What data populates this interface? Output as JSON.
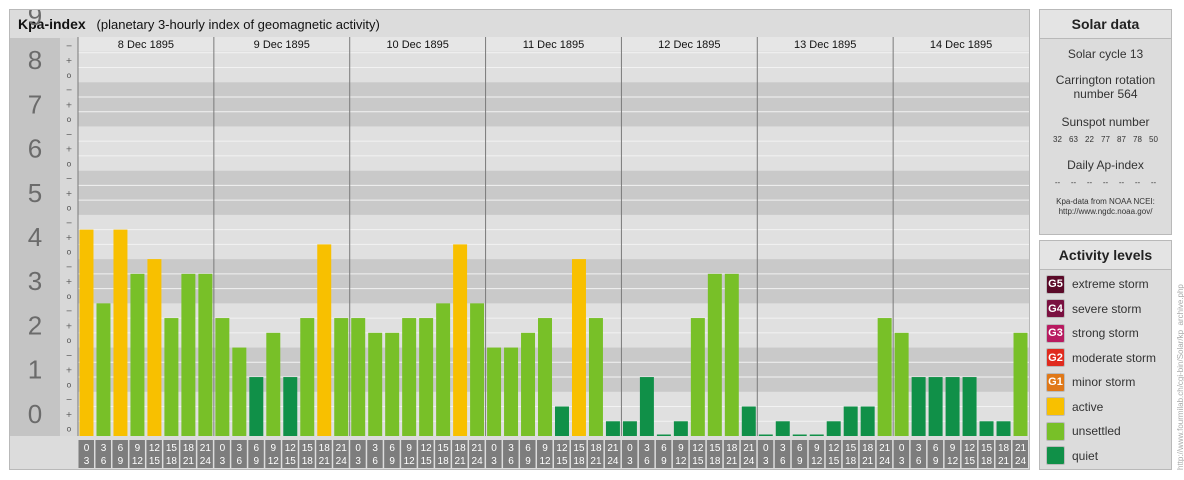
{
  "title": {
    "main": "Kpa-index",
    "sub": "(planetary 3-hourly index of geomagnetic activity)"
  },
  "chart_data": {
    "type": "bar",
    "days": [
      "8 Dec 1895",
      "9 Dec 1895",
      "10 Dec 1895",
      "11 Dec 1895",
      "12 Dec 1895",
      "13 Dec 1895",
      "14 Dec 1895"
    ],
    "interval_starts": [
      "0",
      "3",
      "6",
      "9",
      "12",
      "15",
      "18",
      "21"
    ],
    "interval_ends": [
      "3",
      "6",
      "9",
      "12",
      "15",
      "18",
      "21",
      "24"
    ],
    "ylim": [
      0,
      9
    ],
    "y_ticks": [
      "0",
      "1",
      "2",
      "3",
      "4",
      "5",
      "6",
      "7",
      "8",
      "9"
    ],
    "sub_ticks": [
      "o",
      "+",
      "−"
    ],
    "values": [
      4.667,
      3.0,
      4.667,
      3.667,
      4.0,
      2.667,
      3.667,
      3.667,
      2.667,
      2.0,
      1.333,
      2.333,
      1.333,
      2.667,
      4.333,
      2.667,
      2.667,
      2.333,
      2.333,
      2.667,
      2.667,
      3.0,
      4.333,
      3.0,
      2.0,
      2.0,
      2.333,
      2.667,
      0.667,
      4.0,
      2.667,
      0.333,
      0.333,
      1.333,
      0.0,
      0.333,
      2.667,
      3.667,
      3.667,
      0.667,
      0.0,
      0.333,
      0.0,
      0.0,
      0.333,
      0.667,
      0.667,
      2.667,
      2.333,
      1.333,
      1.333,
      1.333,
      1.333,
      0.333,
      0.333,
      2.333
    ],
    "grid": true
  },
  "colors": {
    "G5": "#5a0a28",
    "G4": "#7a1040",
    "G3": "#b81a60",
    "G2": "#e02a1e",
    "G1": "#e07818",
    "active": "#f8c000",
    "unsettled": "#78c028",
    "quiet": "#109048"
  },
  "solar": {
    "title": "Solar data",
    "cycle": "Solar cycle 13",
    "carrington": "Carrington rotation number 564",
    "sunspot_label": "Sunspot number",
    "sunspot_values": [
      "32",
      "63",
      "22",
      "77",
      "87",
      "78",
      "50"
    ],
    "ap_label": "Daily Ap-index",
    "ap_values": [
      "--",
      "--",
      "--",
      "--",
      "--",
      "--",
      "--"
    ],
    "source": "Kpa-data from NOAA NCEI:",
    "source_url": "http://www.ngdc.noaa.gov/"
  },
  "activity": {
    "title": "Activity levels",
    "levels": [
      {
        "badge": "G5",
        "label": "extreme storm",
        "color": "#5a0a28"
      },
      {
        "badge": "G4",
        "label": "severe storm",
        "color": "#7a1040"
      },
      {
        "badge": "G3",
        "label": "strong storm",
        "color": "#b81a60"
      },
      {
        "badge": "G2",
        "label": "moderate storm",
        "color": "#e02a1e"
      },
      {
        "badge": "G1",
        "label": "minor storm",
        "color": "#e07818"
      },
      {
        "badge": "",
        "label": "active",
        "color": "#f8c000"
      },
      {
        "badge": "",
        "label": "unsettled",
        "color": "#78c028"
      },
      {
        "badge": "",
        "label": "quiet",
        "color": "#109048"
      }
    ]
  },
  "credit": "http://www.fourmilab.ch/cgi-bin/Solar/kp_archive.php"
}
